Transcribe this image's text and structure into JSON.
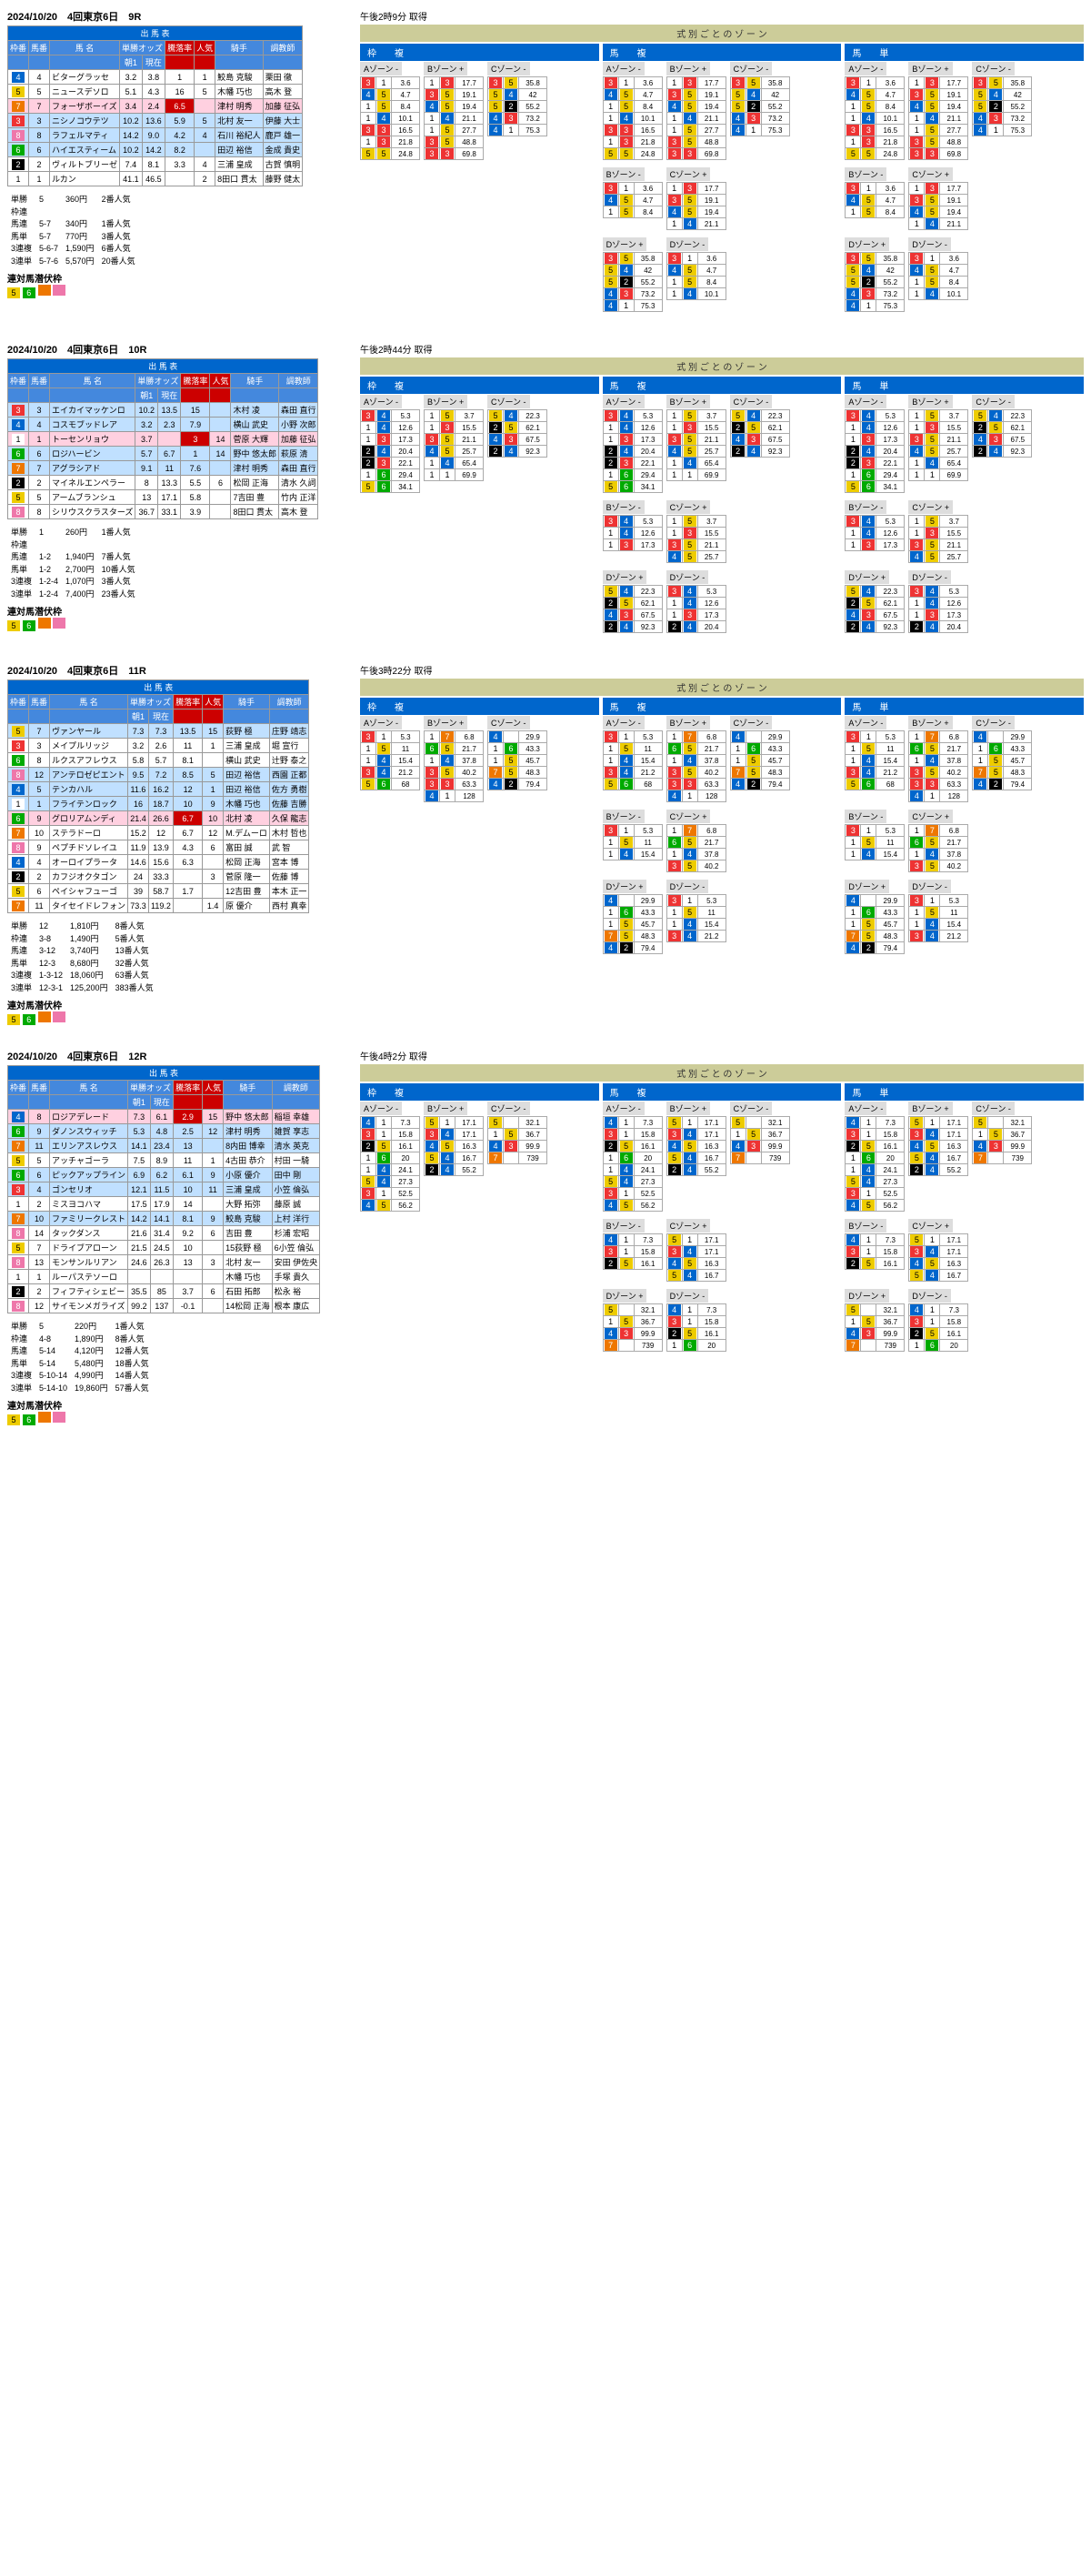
{
  "races": [
    {
      "id": "9R",
      "date": "2024/10/20",
      "meet": "4回東京6日",
      "time": "午後2時9分 取得",
      "horses": [
        {
          "p": "4",
          "w": "4",
          "wc": "h-4",
          "n": "4",
          "name": "ビターグラッセ",
          "o1": "3.2",
          "o2": "3.8",
          "r": "1",
          "pop": "1",
          "j": "鮫島 克駿",
          "t": "栗田 徹"
        },
        {
          "p": "1",
          "w": "5",
          "wc": "h-5",
          "n": "5",
          "name": "ニュースデソロ",
          "o1": "5.1",
          "o2": "4.3",
          "r": "16",
          "pop": "5",
          "j": "木幡 巧也",
          "t": "高木 登"
        },
        {
          "p": "2",
          "w": "7",
          "wc": "h-7",
          "n": "7",
          "name": "フォーザボーイズ",
          "o1": "3.4",
          "o2": "2.4",
          "r": "6.5",
          "pop": "",
          "j": "津村 明秀",
          "t": "加藤 征弘",
          "hl": "pink"
        },
        {
          "p": "6",
          "w": "3",
          "wc": "h-3",
          "n": "3",
          "name": "ニシノコウテツ",
          "o1": "10.2",
          "o2": "13.6",
          "r": "5.9",
          "pop": "5",
          "j": "北村 友一",
          "t": "伊藤 大士",
          "hl": "lblue"
        },
        {
          "p": "9",
          "w": "8",
          "wc": "h-8",
          "n": "8",
          "name": "ラフェルマティ",
          "o1": "14.2",
          "o2": "9.0",
          "r": "4.2",
          "pop": "4",
          "j": "石川 裕紀人",
          "t": "鹿戸 雄一",
          "hl": "lblue"
        },
        {
          "p": "3",
          "w": "6",
          "wc": "h-6",
          "n": "6",
          "name": "ハイエスティーム",
          "o1": "10.2",
          "o2": "14.2",
          "r": "8.2",
          "pop": "",
          "j": "田辺 裕信",
          "t": "金成 貴史",
          "hl": "lblue"
        },
        {
          "p": "5",
          "w": "2",
          "wc": "h-2",
          "n": "2",
          "name": "ヴィルトブリーゼ",
          "o1": "7.4",
          "o2": "8.1",
          "r": "3.3",
          "pop": "4",
          "j": "三浦 皇成",
          "t": "古賀 慎明"
        },
        {
          "p": "8",
          "w": "1",
          "wc": "h-1",
          "n": "1",
          "name": "ルカン",
          "o1": "41.1",
          "o2": "46.5",
          "r": "",
          "pop": "2",
          "j": "8田口 貫太",
          "t": "藤野 健太"
        }
      ],
      "payouts": [
        [
          "単勝",
          "5",
          "360円",
          "2番人気"
        ],
        [
          "枠連",
          "",
          "",
          ""
        ],
        [
          "馬連",
          "5-7",
          "340円",
          "1番人気"
        ],
        [
          "馬単",
          "5-7",
          "770円",
          "3番人気"
        ],
        [
          "3連複",
          "5-6-7",
          "1,590円",
          "6番人気"
        ],
        [
          "3連単",
          "5-7-6",
          "5,570円",
          "20番人気"
        ]
      ]
    },
    {
      "id": "10R",
      "date": "2024/10/20",
      "meet": "4回東京6日",
      "time": "午後2時44分 取得",
      "horses": [
        {
          "p": "8",
          "w": "3",
          "wc": "h-3",
          "n": "3",
          "name": "エイカイマッケンロ",
          "o1": "10.2",
          "o2": "13.5",
          "r": "15",
          "pop": "",
          "j": "木村 凌",
          "t": "森田 直行",
          "hl": "lblue"
        },
        {
          "p": "3",
          "w": "4",
          "wc": "h-4",
          "n": "4",
          "name": "コスモブッドレア",
          "o1": "3.2",
          "o2": "2.3",
          "r": "7.9",
          "pop": "",
          "j": "横山 武史",
          "t": "小野 次郎",
          "hl": "lblue"
        },
        {
          "p": "1",
          "w": "1",
          "wc": "h-1",
          "n": "1",
          "name": "トーセンリョウ",
          "o1": "3.7",
          "o2": "",
          "r": "3",
          "pop": "14",
          "j": "菅原 大輝",
          "t": "加藤 征弘",
          "hl": "pink"
        },
        {
          "p": "6",
          "w": "6",
          "wc": "h-6",
          "n": "6",
          "name": "ロジハービン",
          "o1": "5.7",
          "o2": "6.7",
          "r": "1",
          "pop": "14",
          "j": "野中 悠太郎",
          "t": "萩原 清",
          "hl": "lblue"
        },
        {
          "p": "8",
          "w": "7",
          "wc": "h-7",
          "n": "7",
          "name": "アグラシアド",
          "o1": "9.1",
          "o2": "11",
          "r": "7.6",
          "pop": "",
          "j": "津村 明秀",
          "t": "森田 直行",
          "hl": "lblue"
        },
        {
          "p": "2",
          "w": "2",
          "wc": "h-2",
          "n": "2",
          "name": "マイネルエンペラー",
          "o1": "8",
          "o2": "13.3",
          "r": "5.5",
          "pop": "6",
          "j": "松岡 正海",
          "t": "清水 久詞"
        },
        {
          "p": "8",
          "w": "5",
          "wc": "h-5",
          "n": "5",
          "name": "アームブランシュ",
          "o1": "13",
          "o2": "17.1",
          "r": "5.8",
          "pop": "",
          "j": "7吉田 豊",
          "t": "竹内 正洋"
        },
        {
          "p": "",
          "w": "8",
          "wc": "h-8",
          "n": "8",
          "name": "シリウスクラスターズ",
          "o1": "36.7",
          "o2": "33.1",
          "r": "3.9",
          "pop": "",
          "j": "8田口 貫太",
          "t": "高木 登"
        }
      ],
      "payouts": [
        [
          "単勝",
          "1",
          "260円",
          "1番人気"
        ],
        [
          "枠連",
          "",
          "",
          ""
        ],
        [
          "馬連",
          "1-2",
          "1,940円",
          "7番人気"
        ],
        [
          "馬単",
          "1-2",
          "2,700円",
          "10番人気"
        ],
        [
          "3連複",
          "1-2-4",
          "1,070円",
          "3番人気"
        ],
        [
          "3連単",
          "1-2-4",
          "7,400円",
          "23番人気"
        ]
      ]
    },
    {
      "id": "11R",
      "date": "2024/10/20",
      "meet": "4回東京6日",
      "time": "午後3時22分 取得",
      "horses": [
        {
          "p": "11",
          "w": "5",
          "wc": "h-5",
          "n": "7",
          "name": "ヴァンヤール",
          "o1": "7.3",
          "o2": "7.3",
          "r": "13.5",
          "pop": "15",
          "j": "荻野 極",
          "t": "庄野 靖志",
          "hl": "lblue"
        },
        {
          "p": "2",
          "w": "3",
          "wc": "h-3",
          "n": "3",
          "name": "メイプルリッジ",
          "o1": "3.2",
          "o2": "2.6",
          "r": "11",
          "pop": "1",
          "j": "三浦 皇成",
          "t": "堀 宣行"
        },
        {
          "p": "12",
          "w": "6",
          "wc": "h-6",
          "n": "8",
          "name": "ルクスアフレウス",
          "o1": "5.8",
          "o2": "5.7",
          "r": "8.1",
          "pop": "",
          "j": "横山 武史",
          "t": "辻野 泰之"
        },
        {
          "p": "4",
          "w": "8",
          "wc": "h-8",
          "n": "12",
          "name": "アンテロゼピエント",
          "o1": "9.5",
          "o2": "7.2",
          "r": "8.5",
          "pop": "5",
          "j": "田辺 裕信",
          "t": "西園 正都",
          "hl": "lblue"
        },
        {
          "p": "10",
          "w": "4",
          "wc": "h-4",
          "n": "5",
          "name": "テンカハル",
          "o1": "11.6",
          "o2": "16.2",
          "r": "12",
          "pop": "1",
          "j": "田辺 裕信",
          "t": "佐方 勇樹",
          "hl": "lblue"
        },
        {
          "p": "3",
          "w": "1",
          "wc": "h-1",
          "n": "1",
          "name": "フライテンロック",
          "o1": "16",
          "o2": "18.7",
          "r": "10",
          "pop": "9",
          "j": "木幡 巧也",
          "t": "佐藤 吉勝",
          "hl": "lblue"
        },
        {
          "p": "1",
          "w": "6",
          "wc": "h-6",
          "n": "9",
          "name": "グロリアムンディ",
          "o1": "21.4",
          "o2": "26.6",
          "r": "6.7",
          "pop": "10",
          "j": "北村 凌",
          "t": "久保 龍志",
          "hl": "pink"
        },
        {
          "p": "8",
          "w": "7",
          "wc": "h-7",
          "n": "10",
          "name": "ステラドーロ",
          "o1": "15.2",
          "o2": "12",
          "r": "6.7",
          "pop": "12",
          "j": "M.デムーロ",
          "t": "木村 哲也"
        },
        {
          "p": "1",
          "w": "8",
          "wc": "h-8",
          "n": "9",
          "name": "ペプチドソレイユ",
          "o1": "11.9",
          "o2": "13.9",
          "r": "4.3",
          "pop": "6",
          "j": "富田 誠",
          "t": "武 智",
          "hl": ""
        },
        {
          "p": "7",
          "w": "4",
          "wc": "h-4",
          "n": "4",
          "name": "オーロイプラータ",
          "o1": "14.6",
          "o2": "15.6",
          "r": "6.3",
          "pop": "",
          "j": "松岡 正海",
          "t": "宮本 博"
        },
        {
          "p": "9",
          "w": "2",
          "wc": "h-2",
          "n": "2",
          "name": "カフジオクタゴン",
          "o1": "24",
          "o2": "33.3",
          "r": "",
          "pop": "3",
          "j": "菅原 隆一",
          "t": "佐藤 博"
        },
        {
          "p": "5",
          "w": "5",
          "wc": "h-5",
          "n": "6",
          "name": "ペイシャフューゴ",
          "o1": "39",
          "o2": "58.7",
          "r": "1.7",
          "pop": "",
          "j": "12吉田 豊",
          "t": "本木 正一",
          "hl": ""
        },
        {
          "p": "6",
          "w": "7",
          "wc": "h-7",
          "n": "11",
          "name": "タイセイドレフォン",
          "o1": "73.3",
          "o2": "119.2",
          "r": "",
          "pop": "1.4",
          "j": "原 優介",
          "t": "西村 真幸"
        }
      ],
      "payouts": [
        [
          "単勝",
          "12",
          "1,810円",
          "8番人気"
        ],
        [
          "枠連",
          "3-8",
          "1,490円",
          "5番人気"
        ],
        [
          "馬連",
          "3-12",
          "3,740円",
          "13番人気"
        ],
        [
          "馬単",
          "12-3",
          "8,680円",
          "32番人気"
        ],
        [
          "3連複",
          "1-3-12",
          "18,060円",
          "63番人気"
        ],
        [
          "3連単",
          "12-3-1",
          "125,200円",
          "383番人気"
        ]
      ]
    },
    {
      "id": "12R",
      "date": "2024/10/20",
      "meet": "4回東京6日",
      "time": "午後4時2分 取得",
      "horses": [
        {
          "p": "1",
          "w": "4",
          "wc": "h-4",
          "n": "8",
          "name": "ロジアデレード",
          "o1": "7.3",
          "o2": "6.1",
          "r": "2.9",
          "pop": "15",
          "j": "野中 悠太郎",
          "t": "稲垣 幸雄",
          "hl": "pink"
        },
        {
          "p": "4",
          "w": "6",
          "wc": "h-6",
          "n": "9",
          "name": "ダノンスウィッチ",
          "o1": "5.3",
          "o2": "4.8",
          "r": "2.5",
          "pop": "12",
          "j": "津村 明秀",
          "t": "雑賀 享志",
          "hl": "lblue"
        },
        {
          "p": "6",
          "w": "7",
          "wc": "h-7",
          "n": "11",
          "name": "エリンアスレウス",
          "o1": "14.1",
          "o2": "23.4",
          "r": "13",
          "pop": "",
          "j": "8内田 博幸",
          "t": "清水 英克",
          "hl": "lblue"
        },
        {
          "p": "2",
          "w": "5",
          "wc": "h-5",
          "n": "5",
          "name": "アッチャゴーラ",
          "o1": "7.5",
          "o2": "8.9",
          "r": "11",
          "pop": "1",
          "j": "4古田 恭介",
          "t": "村田 一騎"
        },
        {
          "p": "11",
          "w": "6",
          "wc": "h-6",
          "n": "6",
          "name": "ピックアップライン",
          "o1": "6.9",
          "o2": "6.2",
          "r": "6.1",
          "pop": "9",
          "j": "小原 優介",
          "t": "田中 剛",
          "hl": "lblue"
        },
        {
          "p": "5",
          "w": "3",
          "wc": "h-3",
          "n": "4",
          "name": "ゴンセリオ",
          "o1": "12.1",
          "o2": "11.5",
          "r": "10",
          "pop": "11",
          "j": "三浦 皇成",
          "t": "小笠 倫弘",
          "hl": "lblue"
        },
        {
          "p": "12",
          "w": "1",
          "wc": "h-1",
          "n": "2",
          "name": "ミスヨコハマ",
          "o1": "17.5",
          "o2": "17.9",
          "r": "14",
          "pop": "",
          "j": "大野 拓弥",
          "t": "藤原 誠"
        },
        {
          "p": "7",
          "w": "7",
          "wc": "h-7",
          "n": "10",
          "name": "ファミリークレスト",
          "o1": "14.2",
          "o2": "14.1",
          "r": "8.1",
          "pop": "9",
          "j": "鮫島 克駿",
          "t": "上村 洋行",
          "hl": "lblue"
        },
        {
          "p": "13",
          "w": "8",
          "wc": "h-8",
          "n": "14",
          "name": "タックダンス",
          "o1": "21.6",
          "o2": "31.4",
          "r": "9.2",
          "pop": "6",
          "j": "吉田 豊",
          "t": "杉浦 宏昭"
        },
        {
          "p": "9",
          "w": "5",
          "wc": "h-5",
          "n": "7",
          "name": "ドライブアローン",
          "o1": "21.5",
          "o2": "24.5",
          "r": "10",
          "pop": "",
          "j": "15荻野 極",
          "t": "6小笠 倫弘"
        },
        {
          "p": "14",
          "w": "8",
          "wc": "h-8",
          "n": "13",
          "name": "モンサンルリアン",
          "o1": "24.6",
          "o2": "26.3",
          "r": "13",
          "pop": "3",
          "j": "北村 友一",
          "t": "安田 伊佐央"
        },
        {
          "p": "10",
          "w": "1",
          "wc": "h-1",
          "n": "1",
          "name": "ルーパステソーロ",
          "o1": "",
          "o2": "",
          "r": "",
          "pop": "",
          "j": "木幡 巧也",
          "t": "手塚 貴久"
        },
        {
          "p": "3",
          "w": "2",
          "wc": "h-2",
          "n": "2",
          "name": "フィフティシェビー",
          "o1": "35.5",
          "o2": "85",
          "r": "3.7",
          "pop": "6",
          "j": "石田 拓郎",
          "t": "松永 裕"
        },
        {
          "p": "8",
          "w": "8",
          "wc": "h-8",
          "n": "12",
          "name": "サイモンメガライズ",
          "o1": "99.2",
          "o2": "137",
          "r": "-0.1",
          "pop": "",
          "j": "14松岡 正海",
          "t": "根本 康広"
        }
      ],
      "payouts": [
        [
          "単勝",
          "5",
          "220円",
          "1番人気"
        ],
        [
          "枠連",
          "4-8",
          "1,890円",
          "8番人気"
        ],
        [
          "馬連",
          "5-14",
          "4,120円",
          "12番人気"
        ],
        [
          "馬単",
          "5-14",
          "5,480円",
          "18番人気"
        ],
        [
          "3連複",
          "5-10-14",
          "4,990円",
          "14番人気"
        ],
        [
          "3連単",
          "5-14-10",
          "19,860円",
          "57番人気"
        ]
      ]
    }
  ],
  "labels": {
    "entry": "出 馬 表",
    "fr": "枠番",
    "hn": "馬番",
    "name": "馬 名",
    "odds": "単勝オッズ",
    "morn": "朝1",
    "now": "現在",
    "chg": "騰落率",
    "pop": "人気",
    "j": "騎手",
    "t": "調教師",
    "zone_title": "式 別 ご と の ゾ ー ン",
    "waku": "枠　　複",
    "uma": "馬　　複",
    "tan": "馬　　単",
    "az": "Aゾーン -",
    "bz": "Bゾーン +",
    "cz": "Cゾーン -",
    "bzm": "Bゾーン -",
    "czp": "Cゾーン +",
    "dzp": "Dゾーン +",
    "dzm": "Dゾーン -",
    "hint": "連対馬潜伏枠"
  }
}
